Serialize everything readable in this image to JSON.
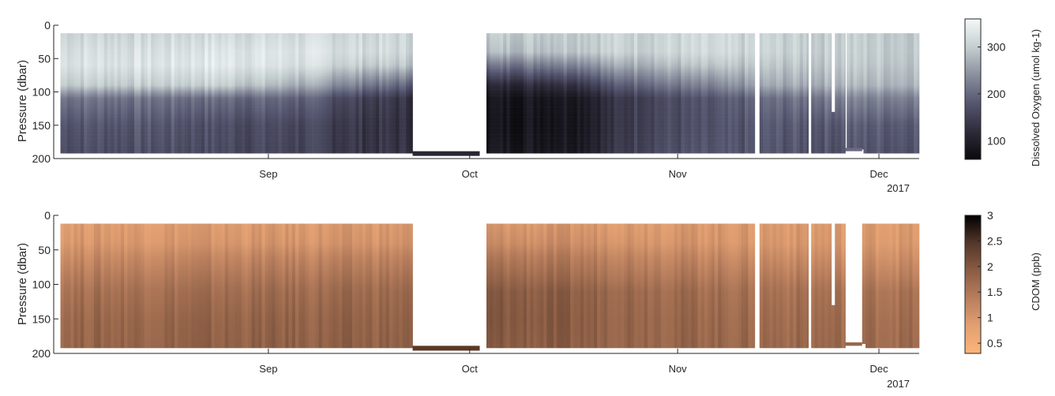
{
  "chart_data": [
    {
      "type": "heatmap",
      "title": "",
      "xlabel": "",
      "ylabel": "Pressure (dbar)",
      "ylim": [
        200,
        0
      ],
      "y_reversed": true,
      "yticks": [
        0,
        50,
        100,
        150,
        200
      ],
      "x_range_days_in_2017": [
        212,
        341
      ],
      "xticks": [
        {
          "label": "Sep",
          "day": 244
        },
        {
          "label": "Oct",
          "day": 274
        },
        {
          "label": "Nov",
          "day": 305
        },
        {
          "label": "Dec",
          "day": 335
        }
      ],
      "year_label": "2017",
      "colorbar": {
        "label": "Dissolved Oxygen (umol kg-1)",
        "ticks": [
          100,
          200,
          300
        ],
        "range": [
          60,
          360
        ],
        "colormap": [
          "#0a0a0d",
          "#2e2b3a",
          "#555670",
          "#8a8f9e",
          "#c5cfd0",
          "#f4f8f8"
        ]
      },
      "data_segments_days": [
        [
          213,
          265.5
        ],
        [
          276.5,
          316.5
        ],
        [
          317.2,
          324.5
        ],
        [
          324.9,
          330
        ],
        [
          330.2,
          341
        ]
      ],
      "profile_bottoms_dbar": [
        {
          "from": 213,
          "to": 265.5,
          "bottom": 191
        },
        {
          "from": 265.5,
          "to": 275.5,
          "bottom": 195
        },
        {
          "from": 276.5,
          "to": 330,
          "bottom": 191
        },
        {
          "from": 330,
          "to": 332.5,
          "bottom": 186
        },
        {
          "from": 332.5,
          "to": 341,
          "bottom": 191
        }
      ],
      "profile_top_dbar": 12,
      "gap_below_dbar": [
        {
          "day": 328.2,
          "bottom": 130
        }
      ],
      "field_description": "values at depths 10/40/60/90/110/150/190 dbar across time",
      "depth_levels_dbar": [
        10,
        40,
        60,
        90,
        110,
        150,
        190
      ],
      "field_keyframes": [
        {
          "day": 213,
          "values": [
            310,
            325,
            330,
            300,
            215,
            180,
            170
          ]
        },
        {
          "day": 228,
          "values": [
            310,
            325,
            330,
            300,
            210,
            180,
            170
          ]
        },
        {
          "day": 236,
          "values": [
            315,
            335,
            340,
            305,
            205,
            170,
            165
          ]
        },
        {
          "day": 248,
          "values": [
            315,
            330,
            325,
            270,
            195,
            160,
            155
          ]
        },
        {
          "day": 258,
          "values": [
            312,
            320,
            300,
            220,
            150,
            135,
            135
          ]
        },
        {
          "day": 265,
          "values": [
            310,
            310,
            290,
            190,
            130,
            125,
            130
          ]
        },
        {
          "day": 277,
          "values": [
            300,
            280,
            210,
            110,
            80,
            75,
            85
          ]
        },
        {
          "day": 290,
          "values": [
            305,
            300,
            240,
            140,
            95,
            90,
            95
          ]
        },
        {
          "day": 300,
          "values": [
            310,
            310,
            280,
            210,
            160,
            160,
            165
          ]
        },
        {
          "day": 310,
          "values": [
            310,
            310,
            285,
            220,
            170,
            165,
            170
          ]
        },
        {
          "day": 318,
          "values": [
            305,
            305,
            290,
            260,
            200,
            180,
            175
          ]
        },
        {
          "day": 330,
          "values": [
            300,
            300,
            295,
            275,
            225,
            185,
            175
          ]
        },
        {
          "day": 341,
          "values": [
            300,
            300,
            295,
            280,
            230,
            190,
            180
          ]
        }
      ]
    },
    {
      "type": "heatmap",
      "title": "",
      "xlabel": "",
      "ylabel": "Pressure (dbar)",
      "ylim": [
        200,
        0
      ],
      "y_reversed": true,
      "yticks": [
        0,
        50,
        100,
        150,
        200
      ],
      "x_range_days_in_2017": [
        212,
        341
      ],
      "xticks": [
        {
          "label": "Sep",
          "day": 244
        },
        {
          "label": "Oct",
          "day": 274
        },
        {
          "label": "Nov",
          "day": 305
        },
        {
          "label": "Dec",
          "day": 335
        }
      ],
      "year_label": "2017",
      "colorbar": {
        "label": "CDOM (ppb)",
        "ticks": [
          0.5,
          1,
          1.5,
          2,
          2.5,
          3
        ],
        "range": [
          0.3,
          3
        ],
        "colormap": [
          "#fbb479",
          "#e2a072",
          "#b87e5d",
          "#8a5d44",
          "#54372a",
          "#000000"
        ]
      },
      "data_segments_days": [
        [
          213,
          265.5
        ],
        [
          276.5,
          316.5
        ],
        [
          317.2,
          324.5
        ],
        [
          324.9,
          330
        ],
        [
          332.5,
          341
        ]
      ],
      "profile_bottoms_dbar": [
        {
          "from": 213,
          "to": 265.5,
          "bottom": 191
        },
        {
          "from": 265.5,
          "to": 275.5,
          "bottom": 195
        },
        {
          "from": 276.5,
          "to": 330,
          "bottom": 191
        },
        {
          "from": 330,
          "to": 332.5,
          "bottom": 186
        },
        {
          "from": 332.5,
          "to": 341,
          "bottom": 191
        }
      ],
      "profile_top_dbar": 12,
      "gap_below_dbar": [
        {
          "day": 328.2,
          "bottom": 130
        }
      ],
      "field_description": "values at depths 10/40/60/90/110/150/190 dbar across time",
      "depth_levels_dbar": [
        10,
        40,
        60,
        90,
        110,
        150,
        190
      ],
      "field_keyframes": [
        {
          "day": 213,
          "values": [
            0.9,
            1.0,
            1.2,
            1.45,
            1.6,
            1.75,
            1.8
          ]
        },
        {
          "day": 240,
          "values": [
            0.9,
            1.0,
            1.25,
            1.5,
            1.65,
            1.8,
            1.85
          ]
        },
        {
          "day": 265,
          "values": [
            0.95,
            1.05,
            1.3,
            1.55,
            1.7,
            1.8,
            1.85
          ]
        },
        {
          "day": 277,
          "values": [
            0.95,
            1.15,
            1.45,
            1.75,
            1.95,
            2.0,
            1.95
          ]
        },
        {
          "day": 295,
          "values": [
            0.95,
            1.1,
            1.35,
            1.6,
            1.8,
            1.85,
            1.85
          ]
        },
        {
          "day": 315,
          "values": [
            0.95,
            1.0,
            1.2,
            1.45,
            1.6,
            1.7,
            1.75
          ]
        },
        {
          "day": 341,
          "values": [
            0.9,
            0.95,
            1.1,
            1.35,
            1.55,
            1.65,
            1.7
          ]
        }
      ]
    }
  ]
}
